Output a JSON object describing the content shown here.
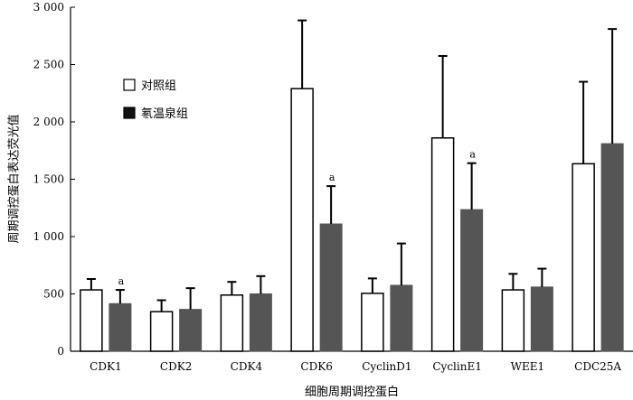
{
  "chart_data": {
    "type": "bar",
    "xlabel": "细胞周期调控蛋白",
    "ylabel": "周期调控蛋白表达荧光值",
    "ylim": [
      0,
      3000
    ],
    "yticks": [
      0,
      500,
      1000,
      1500,
      2000,
      2500,
      3000
    ],
    "ytick_labels": [
      "0",
      "500",
      "1 000",
      "1 500",
      "2 000",
      "2 500",
      "3 000"
    ],
    "categories": [
      "CDK1",
      "CDK2",
      "CDK4",
      "CDK6",
      "CyclinD1",
      "CyclinE1",
      "WEE1",
      "CDC25A"
    ],
    "series": [
      {
        "name": "对照组",
        "color": "#ffffff",
        "values": [
          535,
          345,
          490,
          2290,
          505,
          1860,
          535,
          1635
        ],
        "errors": [
          95,
          100,
          115,
          595,
          130,
          715,
          140,
          715
        ]
      },
      {
        "name": "氡温泉组",
        "color": "#555555",
        "values": [
          415,
          365,
          500,
          1110,
          575,
          1235,
          560,
          1810
        ],
        "errors": [
          120,
          185,
          155,
          330,
          365,
          405,
          160,
          1000
        ]
      }
    ],
    "annotations": [
      {
        "category": "CDK1",
        "series": "氡温泉组",
        "text": "a"
      },
      {
        "category": "CDK6",
        "series": "氡温泉组",
        "text": "a"
      },
      {
        "category": "CyclinE1",
        "series": "氡温泉组",
        "text": "a"
      }
    ],
    "legend_position": "top-left"
  }
}
